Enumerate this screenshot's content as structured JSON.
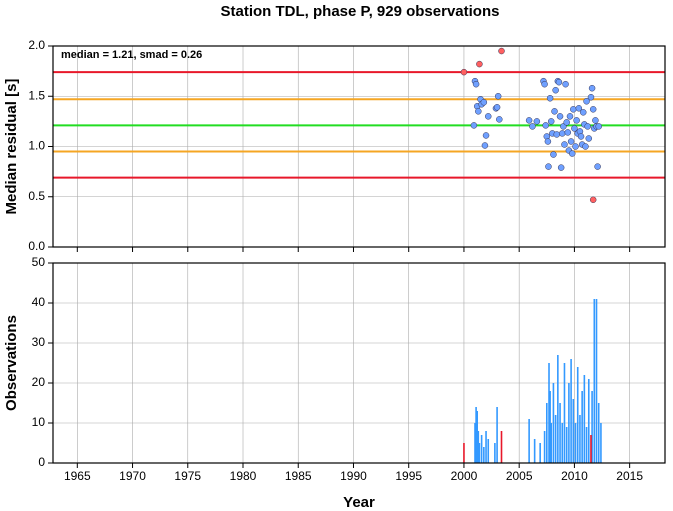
{
  "chart_data": [
    {
      "type": "scatter",
      "title": "Station TDL, phase P, 929 observations",
      "ylabel": "Median residual [s]",
      "annotation": "median = 1.21, smad = 0.26",
      "xlim": [
        1962.8,
        2018.2
      ],
      "xticks": [
        1965,
        1970,
        1975,
        1980,
        1985,
        1990,
        1995,
        2000,
        2005,
        2010,
        2015
      ],
      "ylim": [
        0,
        2
      ],
      "yticks": [
        {
          "value": 0,
          "label": "0.0"
        },
        0.5,
        {
          "value": 1,
          "label": "1.0"
        },
        1.5,
        {
          "value": 2,
          "label": "2.0"
        }
      ],
      "grid": true,
      "lines": [
        {
          "value": 1.74,
          "color": "#e8182a"
        },
        {
          "value": 1.47,
          "color": "#f5a623"
        },
        {
          "value": 1.21,
          "color": "#22dd22"
        },
        {
          "value": 0.95,
          "color": "#f5a623"
        },
        {
          "value": 0.69,
          "color": "#e8182a"
        }
      ],
      "series": [
        {
          "color": "#6fa0ff",
          "x": [
            2000.9,
            2001.0,
            2001.1,
            2001.2,
            2001.3,
            2001.5,
            2001.6,
            2001.8,
            2001.9,
            2002.0,
            2002.2,
            2002.9,
            2003.0,
            2003.1,
            2003.2,
            2005.9,
            2006.2,
            2006.6,
            2007.2,
            2007.3,
            2007.4,
            2007.5,
            2007.6,
            2007.65,
            2007.8,
            2007.9,
            2008.0,
            2008.1,
            2008.2,
            2008.3,
            2008.4,
            2008.5,
            2008.6,
            2008.7,
            2008.8,
            2008.9,
            2009.0,
            2009.1,
            2009.2,
            2009.3,
            2009.4,
            2009.5,
            2009.6,
            2009.7,
            2009.8,
            2009.9,
            2010.0,
            2010.1,
            2010.2,
            2010.3,
            2010.4,
            2010.5,
            2010.6,
            2010.7,
            2010.8,
            2010.9,
            2011.0,
            2011.1,
            2011.2,
            2011.3,
            2011.5,
            2011.6,
            2011.7,
            2011.8,
            2011.9,
            2012.0,
            2012.1,
            2012.2
          ],
          "values": [
            1.21,
            1.65,
            1.62,
            1.4,
            1.35,
            1.47,
            1.42,
            1.44,
            1.01,
            1.11,
            1.3,
            1.38,
            1.39,
            1.5,
            1.27,
            1.26,
            1.2,
            1.25,
            1.65,
            1.62,
            1.21,
            1.1,
            1.05,
            0.8,
            1.48,
            1.25,
            1.13,
            0.92,
            1.35,
            1.56,
            1.12,
            1.65,
            1.64,
            1.3,
            0.79,
            1.13,
            1.2,
            1.02,
            1.62,
            1.24,
            1.14,
            0.96,
            1.3,
            1.05,
            0.93,
            1.37,
            1.18,
            1.0,
            1.26,
            1.13,
            1.38,
            1.15,
            1.1,
            1.02,
            1.34,
            1.22,
            1.0,
            1.45,
            1.2,
            1.08,
            1.49,
            1.58,
            1.37,
            1.18,
            1.26,
            1.2,
            0.8,
            1.2
          ]
        },
        {
          "color": "#ff6060",
          "x": [
            2000.0,
            2001.4,
            2003.4,
            2011.7
          ],
          "values": [
            1.74,
            1.82,
            1.95,
            0.47
          ]
        }
      ]
    },
    {
      "type": "bar",
      "ylabel": "Observations",
      "xlabel": "Year",
      "xlim": [
        1962.8,
        2018.2
      ],
      "xticks": [
        1965,
        1970,
        1975,
        1980,
        1985,
        1990,
        1995,
        2000,
        2005,
        2010,
        2015
      ],
      "ylim": [
        0,
        50
      ],
      "yticks": [
        0,
        10,
        20,
        30,
        40,
        50
      ],
      "grid": true,
      "series": [
        {
          "color": "#3399ff",
          "x": [
            2001.0,
            2001.1,
            2001.2,
            2001.3,
            2001.4,
            2001.6,
            2001.8,
            2002.0,
            2002.2,
            2002.8,
            2003.0,
            2005.9,
            2006.4,
            2006.9,
            2007.3,
            2007.5,
            2007.7,
            2007.8,
            2007.9,
            2008.1,
            2008.3,
            2008.5,
            2008.7,
            2008.9,
            2009.1,
            2009.3,
            2009.5,
            2009.7,
            2009.9,
            2010.1,
            2010.3,
            2010.5,
            2010.7,
            2010.9,
            2011.1,
            2011.3,
            2011.6,
            2011.8,
            2012.0,
            2012.2,
            2012.4
          ],
          "values": [
            10,
            14,
            13,
            8,
            5,
            7,
            4,
            8,
            6,
            5,
            14,
            11,
            6,
            5,
            8,
            15,
            25,
            18,
            10,
            20,
            12,
            27,
            15,
            10,
            25,
            9,
            20,
            26,
            16,
            10,
            24,
            12,
            18,
            22,
            9,
            21,
            18,
            41,
            41,
            15,
            10
          ]
        },
        {
          "color": "#e8182a",
          "x": [
            2000.0,
            2003.4,
            2011.5
          ],
          "values": [
            5,
            8,
            7
          ]
        }
      ]
    }
  ]
}
